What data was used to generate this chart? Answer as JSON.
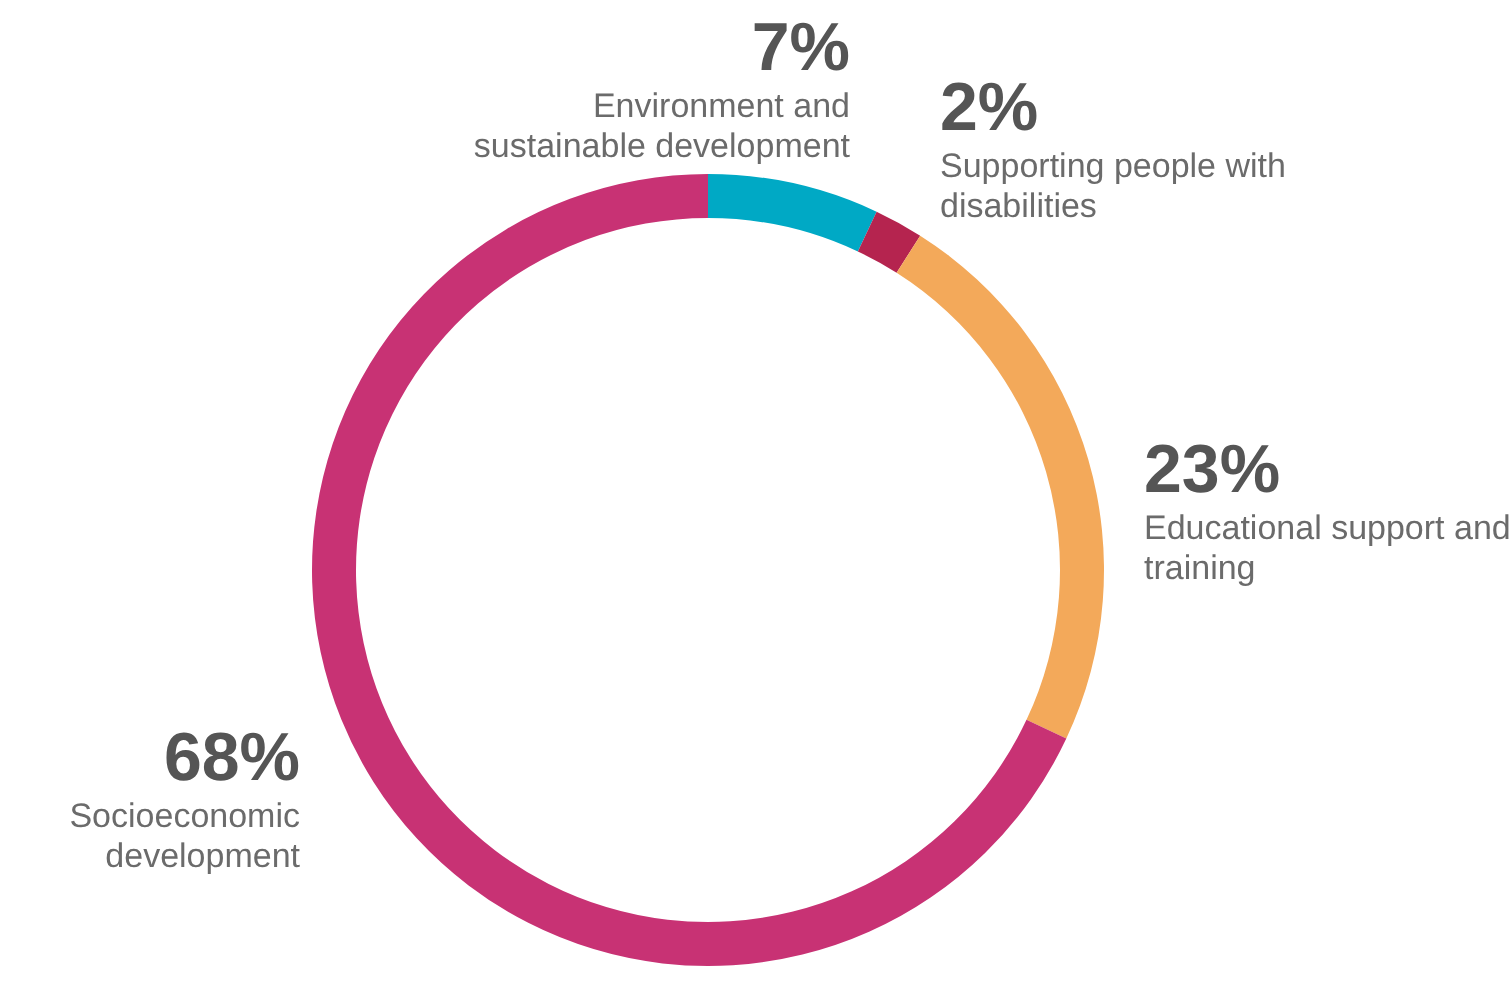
{
  "chart_data": {
    "type": "donut",
    "categories": [
      "Environment and sustainable development",
      "Supporting people with disabilities",
      "Educational support and training",
      "Socioeconomic development"
    ],
    "values": [
      7,
      2,
      23,
      68
    ],
    "colors": [
      "#00a9c5",
      "#b5244f",
      "#f3a95a",
      "#c83274"
    ],
    "value_labels": [
      "7%",
      "2%",
      "23%",
      "68%"
    ],
    "legend": false
  }
}
